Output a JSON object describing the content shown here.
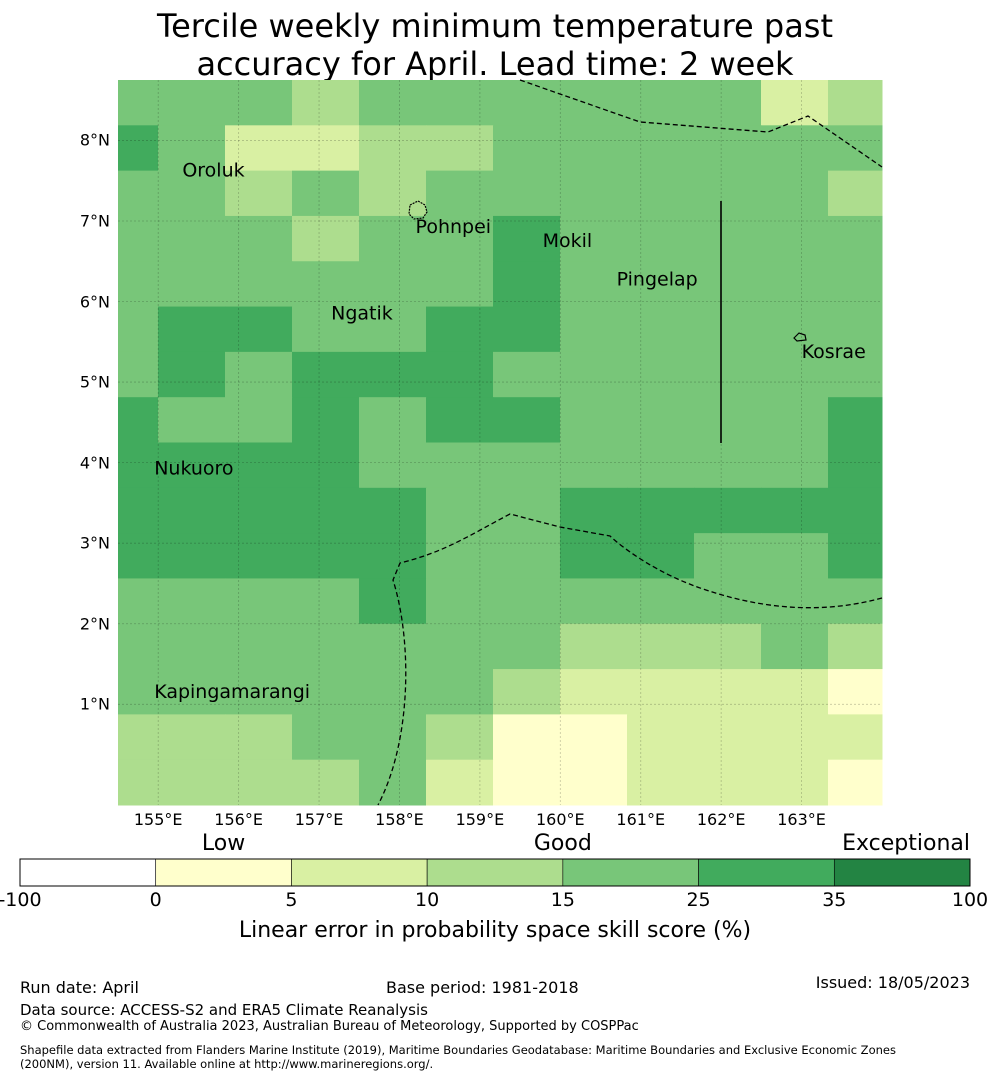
{
  "title": {
    "line1": "Tercile weekly minimum temperature past",
    "line2": "accuracy for April. Lead time: 2 week"
  },
  "map": {
    "lon_range": [
      154.5,
      164.0
    ],
    "lat_range": [
      -0.25,
      8.75
    ],
    "lat_ticks": [
      {
        "value": 1,
        "label": "1°N"
      },
      {
        "value": 2,
        "label": "2°N"
      },
      {
        "value": 3,
        "label": "3°N"
      },
      {
        "value": 4,
        "label": "4°N"
      },
      {
        "value": 5,
        "label": "5°N"
      },
      {
        "value": 6,
        "label": "6°N"
      },
      {
        "value": 7,
        "label": "7°N"
      },
      {
        "value": 8,
        "label": "8°N"
      }
    ],
    "lon_ticks": [
      {
        "value": 155,
        "label": "155°E"
      },
      {
        "value": 156,
        "label": "156°E"
      },
      {
        "value": 157,
        "label": "157°E"
      },
      {
        "value": 158,
        "label": "158°E"
      },
      {
        "value": 159,
        "label": "159°E"
      },
      {
        "value": 160,
        "label": "160°E"
      },
      {
        "value": 161,
        "label": "161°E"
      },
      {
        "value": 162,
        "label": "162°E"
      },
      {
        "value": 163,
        "label": "163°E"
      }
    ],
    "grid_lines": true,
    "places": [
      {
        "name": "Oroluk",
        "lon": 155.3,
        "lat": 7.55
      },
      {
        "name": "Pohnpei",
        "lon": 158.2,
        "lat": 6.85
      },
      {
        "name": "Mokil",
        "lon": 159.78,
        "lat": 6.68
      },
      {
        "name": "Pingelap",
        "lon": 160.7,
        "lat": 6.2
      },
      {
        "name": "Ngatik",
        "lon": 157.15,
        "lat": 5.78
      },
      {
        "name": "Kosrae",
        "lon": 163.0,
        "lat": 5.3
      },
      {
        "name": "Nukuoro",
        "lon": 154.95,
        "lat": 3.85
      },
      {
        "name": "Kapingamarangi",
        "lon": 154.95,
        "lat": 1.08
      }
    ],
    "cell_rows": [
      [
        4,
        4,
        4,
        3,
        4,
        4,
        4,
        4,
        4,
        4,
        2,
        3
      ],
      [
        5,
        4,
        2,
        2,
        3,
        3,
        4,
        4,
        4,
        4,
        4,
        4
      ],
      [
        4,
        4,
        3,
        4,
        3,
        4,
        4,
        4,
        4,
        4,
        4,
        3
      ],
      [
        4,
        4,
        4,
        3,
        4,
        4,
        5,
        4,
        4,
        4,
        4,
        4
      ],
      [
        4,
        4,
        4,
        4,
        4,
        4,
        5,
        4,
        4,
        4,
        4,
        4
      ],
      [
        4,
        5,
        5,
        4,
        4,
        5,
        5,
        4,
        4,
        4,
        4,
        4
      ],
      [
        4,
        5,
        4,
        5,
        5,
        5,
        4,
        4,
        4,
        4,
        4,
        4
      ],
      [
        5,
        4,
        4,
        5,
        4,
        5,
        5,
        4,
        4,
        4,
        4,
        5
      ],
      [
        5,
        5,
        5,
        5,
        4,
        4,
        4,
        4,
        4,
        4,
        4,
        5
      ],
      [
        5,
        5,
        5,
        5,
        5,
        4,
        4,
        5,
        5,
        5,
        5,
        5
      ],
      [
        5,
        5,
        5,
        5,
        5,
        4,
        4,
        5,
        5,
        4,
        4,
        5
      ],
      [
        4,
        4,
        4,
        4,
        5,
        4,
        4,
        4,
        4,
        4,
        4,
        4
      ],
      [
        4,
        4,
        4,
        4,
        4,
        4,
        4,
        3,
        3,
        3,
        4,
        3
      ],
      [
        4,
        4,
        4,
        4,
        4,
        4,
        3,
        2,
        2,
        2,
        2,
        1
      ],
      [
        3,
        3,
        3,
        4,
        4,
        3,
        1,
        1,
        2,
        2,
        2,
        2
      ],
      [
        3,
        3,
        3,
        3,
        4,
        2,
        1,
        1,
        2,
        2,
        2,
        1
      ]
    ],
    "colors": [
      "#ffffff",
      "#ffffcc",
      "#d9f0a3",
      "#addd8e",
      "#78c679",
      "#41ab5d",
      "#238443"
    ],
    "boundary_color": "#000000"
  },
  "colorbar": {
    "categories": [
      {
        "label": "Low",
        "position": 1
      },
      {
        "label": "Good",
        "position": 3.5
      },
      {
        "label": "Exceptional",
        "position": 6
      }
    ],
    "ticks": [
      "-100",
      "0",
      "5",
      "10",
      "15",
      "25",
      "35",
      "100"
    ],
    "label": "Linear error in probability space skill score (%)"
  },
  "footer": {
    "run_date": "Run date: April",
    "base_period": "Base period: 1981-2018",
    "issued": "Issued: 18/05/2023",
    "data_source": "Data source: ACCESS-S2 and ERA5 Climate Reanalysis",
    "copyright": "© Commonwealth of Australia 2023, Australian Bureau of Meteorology, Supported by COSPPac",
    "shapefile_line1": "Shapefile data extracted from Flanders Marine Institute (2019), Maritime Boundaries Geodatabase: Maritime Boundaries and Exclusive Economic Zones",
    "shapefile_line2": "(200NM), version 11. Available online at http://www.marineregions.org/."
  }
}
